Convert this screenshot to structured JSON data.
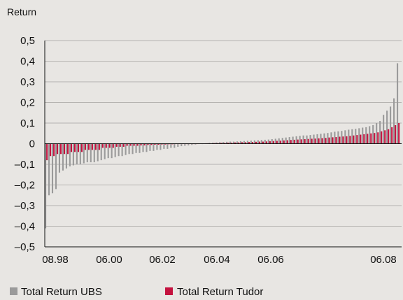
{
  "chart_data": {
    "type": "bar",
    "ylabel": "Return",
    "ylim": [
      -0.5,
      0.5
    ],
    "y_ticks": [
      "0,5",
      "0,4",
      "0,3",
      "0,2",
      "0,1",
      "0",
      "–0,1",
      "–0,2",
      "–0,3",
      "–0,4",
      "–0,5"
    ],
    "x_ticks": [
      "08.98",
      "06.00",
      "06.02",
      "06.04",
      "06.06",
      "06.08"
    ],
    "grid": true,
    "legend_position": "bottom-left",
    "colors": {
      "ubs": "#9a9a9a",
      "tudor": "#c4123e",
      "grid": "#b5b3b0",
      "axis": "#111111"
    },
    "series": [
      {
        "name": "Total Return UBS",
        "values": [
          -0.41,
          -0.25,
          -0.24,
          -0.22,
          -0.14,
          -0.13,
          -0.12,
          -0.11,
          -0.105,
          -0.1,
          -0.1,
          -0.095,
          -0.09,
          -0.09,
          -0.09,
          -0.085,
          -0.08,
          -0.075,
          -0.07,
          -0.07,
          -0.065,
          -0.06,
          -0.06,
          -0.055,
          -0.05,
          -0.05,
          -0.045,
          -0.045,
          -0.04,
          -0.04,
          -0.035,
          -0.035,
          -0.03,
          -0.03,
          -0.025,
          -0.025,
          -0.02,
          -0.02,
          -0.015,
          -0.012,
          -0.01,
          -0.008,
          -0.006,
          -0.004,
          -0.002,
          0,
          0.002,
          0.004,
          0.005,
          0.006,
          0.007,
          0.008,
          0.009,
          0.01,
          0.01,
          0.011,
          0.012,
          0.013,
          0.014,
          0.015,
          0.016,
          0.017,
          0.018,
          0.019,
          0.02,
          0.022,
          0.024,
          0.026,
          0.028,
          0.03,
          0.032,
          0.034,
          0.036,
          0.038,
          0.04,
          0.04,
          0.042,
          0.044,
          0.046,
          0.048,
          0.05,
          0.052,
          0.055,
          0.058,
          0.06,
          0.062,
          0.065,
          0.068,
          0.07,
          0.072,
          0.075,
          0.078,
          0.08,
          0.085,
          0.09,
          0.1,
          0.11,
          0.14,
          0.16,
          0.18,
          0.22,
          0.39
        ]
      },
      {
        "name": "Total Return Tudor",
        "values": [
          -0.08,
          -0.06,
          -0.06,
          -0.05,
          -0.05,
          -0.05,
          -0.05,
          -0.04,
          -0.04,
          -0.04,
          -0.04,
          -0.03,
          -0.03,
          -0.03,
          -0.03,
          -0.03,
          -0.02,
          -0.02,
          -0.02,
          -0.02,
          -0.015,
          -0.015,
          -0.015,
          -0.01,
          -0.01,
          -0.01,
          -0.01,
          -0.008,
          -0.008,
          -0.006,
          -0.006,
          -0.005,
          -0.005,
          -0.004,
          -0.004,
          -0.003,
          -0.003,
          -0.002,
          -0.002,
          -0.001,
          -0.001,
          0,
          0,
          0,
          0.001,
          0.001,
          0.002,
          0.002,
          0.003,
          0.003,
          0.004,
          0.004,
          0.005,
          0.005,
          0.006,
          0.006,
          0.007,
          0.007,
          0.008,
          0.008,
          0.009,
          0.01,
          0.01,
          0.011,
          0.012,
          0.013,
          0.014,
          0.015,
          0.016,
          0.017,
          0.018,
          0.019,
          0.02,
          0.021,
          0.022,
          0.023,
          0.024,
          0.025,
          0.026,
          0.027,
          0.028,
          0.03,
          0.031,
          0.032,
          0.034,
          0.035,
          0.036,
          0.038,
          0.04,
          0.042,
          0.044,
          0.046,
          0.048,
          0.05,
          0.052,
          0.055,
          0.06,
          0.065,
          0.07,
          0.08,
          0.09,
          0.1
        ]
      }
    ]
  }
}
